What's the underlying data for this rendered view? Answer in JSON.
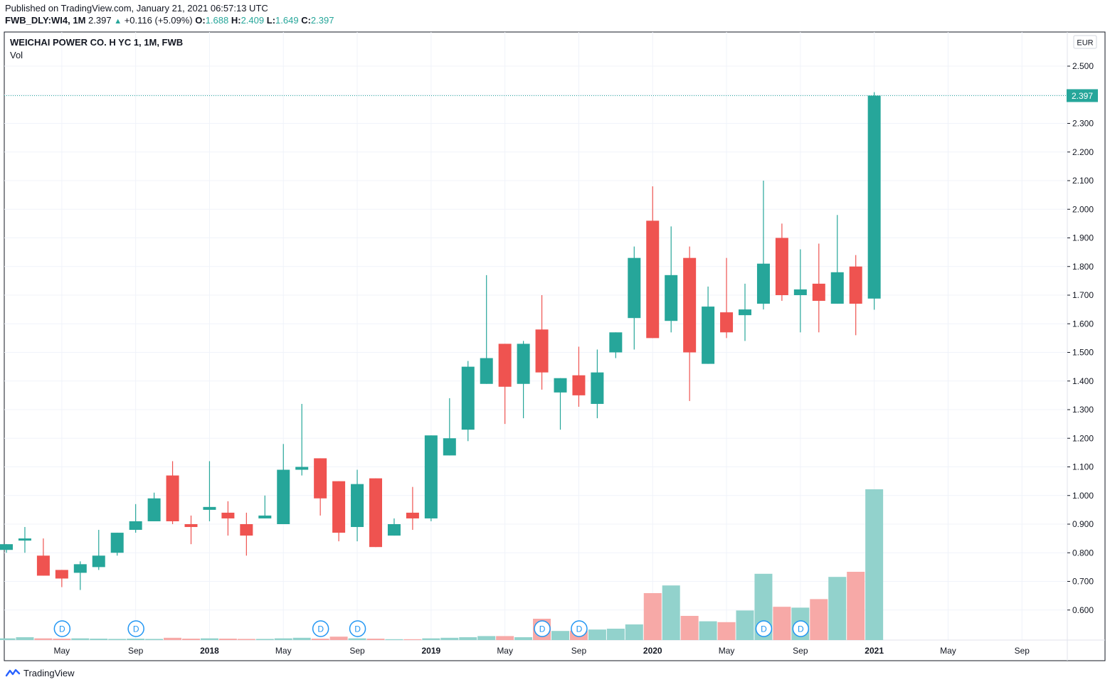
{
  "header": {
    "published": "Published on TradingView.com, January 21, 2021 06:57:13 UTC",
    "symbol": "FWB_DLY:WI4, 1M",
    "last": "2.397",
    "change": "+0.116 (+5.09%)",
    "o_label": "O:",
    "o_val": "1.688",
    "h_label": "H:",
    "h_val": "2.409",
    "l_label": "L:",
    "l_val": "1.649",
    "c_label": "C:",
    "c_val": "2.397"
  },
  "legend": {
    "title": "WEICHAI POWER CO. H YC 1, 1M, FWB",
    "vol": "Vol"
  },
  "currency": "EUR",
  "footer": {
    "brand": "TradingView"
  },
  "colors": {
    "up": "#26a69a",
    "down": "#ef5350",
    "up_vol": "#92d2cc",
    "down_vol": "#f7a9a7",
    "grid": "#f0f3fa",
    "axis": "#131722"
  },
  "dividend_marker": "D",
  "chart_data": {
    "type": "candlestick",
    "timeframe": "1M",
    "ylim": [
      0.5,
      2.6
    ],
    "y_ticks": [
      0.6,
      0.7,
      0.8,
      0.9,
      1.0,
      1.1,
      1.2,
      1.3,
      1.4,
      1.5,
      1.6,
      1.7,
      1.8,
      1.9,
      2.0,
      2.1,
      2.2,
      2.3,
      2.4,
      2.5
    ],
    "x_tick_labels": [
      {
        "label": "May",
        "index": 3
      },
      {
        "label": "Sep",
        "index": 7
      },
      {
        "label": "2018",
        "index": 11
      },
      {
        "label": "May",
        "index": 15
      },
      {
        "label": "Sep",
        "index": 19
      },
      {
        "label": "2019",
        "index": 23
      },
      {
        "label": "May",
        "index": 27
      },
      {
        "label": "Sep",
        "index": 31
      },
      {
        "label": "2020",
        "index": 35
      },
      {
        "label": "May",
        "index": 39
      },
      {
        "label": "Sep",
        "index": 43
      },
      {
        "label": "2021",
        "index": 47
      },
      {
        "label": "May",
        "index": 51
      },
      {
        "label": "Sep",
        "index": 55
      }
    ],
    "last_price": "2.397",
    "candles": [
      {
        "o": 0.81,
        "h": 0.83,
        "l": 0.8,
        "c": 0.83,
        "v": 0.006
      },
      {
        "o": 0.85,
        "h": 0.89,
        "l": 0.8,
        "c": 0.85,
        "v": 0.01
      },
      {
        "o": 0.79,
        "h": 0.85,
        "l": 0.72,
        "c": 0.72,
        "v": 0.006
      },
      {
        "o": 0.74,
        "h": 0.74,
        "l": 0.68,
        "c": 0.71,
        "v": 0.005
      },
      {
        "o": 0.73,
        "h": 0.77,
        "l": 0.67,
        "c": 0.76,
        "v": 0.006
      },
      {
        "o": 0.75,
        "h": 0.88,
        "l": 0.74,
        "c": 0.79,
        "v": 0.005
      },
      {
        "o": 0.8,
        "h": 0.87,
        "l": 0.79,
        "c": 0.87,
        "v": 0.004
      },
      {
        "o": 0.88,
        "h": 0.97,
        "l": 0.87,
        "c": 0.91,
        "v": 0.005
      },
      {
        "o": 0.91,
        "h": 1.01,
        "l": 0.91,
        "c": 0.99,
        "v": 0.004
      },
      {
        "o": 1.07,
        "h": 1.12,
        "l": 0.9,
        "c": 0.91,
        "v": 0.008
      },
      {
        "o": 0.9,
        "h": 0.93,
        "l": 0.83,
        "c": 0.89,
        "v": 0.005
      },
      {
        "o": 0.95,
        "h": 1.12,
        "l": 0.91,
        "c": 0.96,
        "v": 0.006
      },
      {
        "o": 0.94,
        "h": 0.98,
        "l": 0.86,
        "c": 0.92,
        "v": 0.005
      },
      {
        "o": 0.9,
        "h": 0.94,
        "l": 0.79,
        "c": 0.86,
        "v": 0.004
      },
      {
        "o": 0.92,
        "h": 1.0,
        "l": 0.92,
        "c": 0.93,
        "v": 0.004
      },
      {
        "o": 0.9,
        "h": 1.18,
        "l": 0.9,
        "c": 1.09,
        "v": 0.006
      },
      {
        "o": 1.09,
        "h": 1.32,
        "l": 1.07,
        "c": 1.1,
        "v": 0.008
      },
      {
        "o": 1.13,
        "h": 1.13,
        "l": 0.93,
        "c": 0.99,
        "v": 0.005
      },
      {
        "o": 1.05,
        "h": 1.05,
        "l": 0.84,
        "c": 0.87,
        "v": 0.012
      },
      {
        "o": 0.89,
        "h": 1.09,
        "l": 0.84,
        "c": 1.04,
        "v": 0.006
      },
      {
        "o": 1.06,
        "h": 1.06,
        "l": 0.82,
        "c": 0.82,
        "v": 0.005
      },
      {
        "o": 0.86,
        "h": 0.92,
        "l": 0.86,
        "c": 0.9,
        "v": 0.003
      },
      {
        "o": 0.94,
        "h": 1.03,
        "l": 0.88,
        "c": 0.92,
        "v": 0.003
      },
      {
        "o": 0.92,
        "h": 1.21,
        "l": 0.91,
        "c": 1.21,
        "v": 0.006
      },
      {
        "o": 1.14,
        "h": 1.34,
        "l": 1.14,
        "c": 1.2,
        "v": 0.008
      },
      {
        "o": 1.23,
        "h": 1.47,
        "l": 1.19,
        "c": 1.45,
        "v": 0.01
      },
      {
        "o": 1.39,
        "h": 1.77,
        "l": 1.39,
        "c": 1.48,
        "v": 0.014
      },
      {
        "o": 1.53,
        "h": 1.53,
        "l": 1.25,
        "c": 1.38,
        "v": 0.014
      },
      {
        "o": 1.39,
        "h": 1.54,
        "l": 1.27,
        "c": 1.53,
        "v": 0.01
      },
      {
        "o": 1.58,
        "h": 1.7,
        "l": 1.37,
        "c": 1.43,
        "v": 0.075
      },
      {
        "o": 1.36,
        "h": 1.41,
        "l": 1.23,
        "c": 1.41,
        "v": 0.032
      },
      {
        "o": 1.42,
        "h": 1.52,
        "l": 1.31,
        "c": 1.35,
        "v": 0.033
      },
      {
        "o": 1.32,
        "h": 1.51,
        "l": 1.27,
        "c": 1.43,
        "v": 0.037
      },
      {
        "o": 1.5,
        "h": 1.57,
        "l": 1.48,
        "c": 1.57,
        "v": 0.04
      },
      {
        "o": 1.62,
        "h": 1.87,
        "l": 1.51,
        "c": 1.83,
        "v": 0.055
      },
      {
        "o": 1.96,
        "h": 2.08,
        "l": 1.55,
        "c": 1.55,
        "v": 0.165
      },
      {
        "o": 1.61,
        "h": 1.94,
        "l": 1.57,
        "c": 1.77,
        "v": 0.192
      },
      {
        "o": 1.83,
        "h": 1.87,
        "l": 1.33,
        "c": 1.5,
        "v": 0.085
      },
      {
        "o": 1.46,
        "h": 1.73,
        "l": 1.46,
        "c": 1.66,
        "v": 0.066
      },
      {
        "o": 1.64,
        "h": 1.83,
        "l": 1.55,
        "c": 1.57,
        "v": 0.063
      },
      {
        "o": 1.63,
        "h": 1.74,
        "l": 1.54,
        "c": 1.65,
        "v": 0.104
      },
      {
        "o": 1.67,
        "h": 2.1,
        "l": 1.65,
        "c": 1.81,
        "v": 0.233
      },
      {
        "o": 1.9,
        "h": 1.95,
        "l": 1.68,
        "c": 1.7,
        "v": 0.117
      },
      {
        "o": 1.7,
        "h": 1.86,
        "l": 1.57,
        "c": 1.72,
        "v": 0.114
      },
      {
        "o": 1.74,
        "h": 1.88,
        "l": 1.57,
        "c": 1.68,
        "v": 0.144
      },
      {
        "o": 1.67,
        "h": 1.98,
        "l": 1.67,
        "c": 1.78,
        "v": 0.222
      },
      {
        "o": 1.8,
        "h": 1.84,
        "l": 1.56,
        "c": 1.67,
        "v": 0.24
      },
      {
        "o": 1.688,
        "h": 2.409,
        "l": 1.649,
        "c": 2.397,
        "v": 0.53
      }
    ],
    "dividends_at_index": [
      3,
      7,
      17,
      19,
      29,
      31,
      41,
      43
    ]
  }
}
